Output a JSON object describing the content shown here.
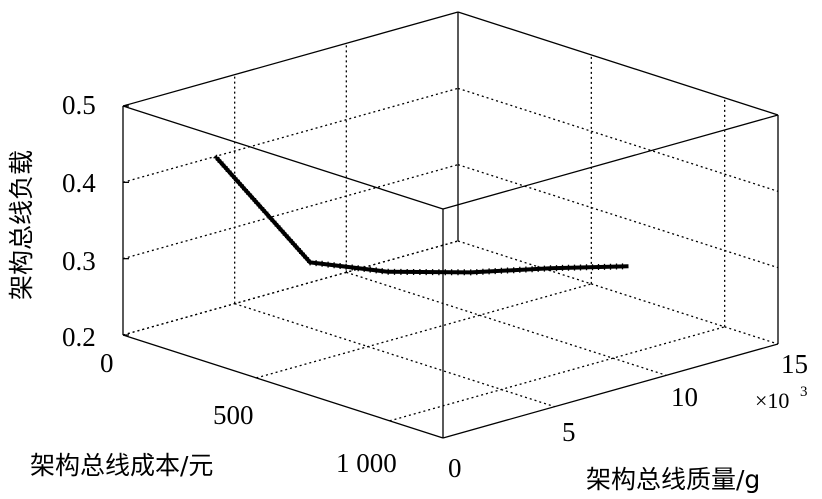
{
  "chart_data": {
    "type": "line3d",
    "title": "",
    "xlabel": "架构总线成本/元",
    "ylabel": "架构总线质量/g",
    "zlabel": "架构总线负载",
    "x_ticks": [
      "0",
      "500",
      "1 000"
    ],
    "y_ticks": [
      "0",
      "5",
      "10",
      "15"
    ],
    "y_multiplier": "×10",
    "y_multiplier_exponent": "3",
    "z_ticks": [
      "0.5",
      "0.4",
      "0.3",
      "0.2"
    ],
    "xlim": [
      0,
      1200
    ],
    "ylim": [
      0,
      15000
    ],
    "zlim": [
      0.2,
      0.5
    ],
    "grid": true,
    "series": [
      {
        "color": "#000000",
        "marker": "+",
        "points": [
          {
            "x": 200,
            "y": 1800,
            "z": 0.44
          },
          {
            "x": 350,
            "y": 4200,
            "z": 0.3
          },
          {
            "x": 450,
            "y": 6500,
            "z": 0.28
          },
          {
            "x": 550,
            "y": 9000,
            "z": 0.27
          },
          {
            "x": 640,
            "y": 11500,
            "z": 0.265
          },
          {
            "x": 740,
            "y": 13800,
            "z": 0.26
          }
        ]
      }
    ]
  }
}
